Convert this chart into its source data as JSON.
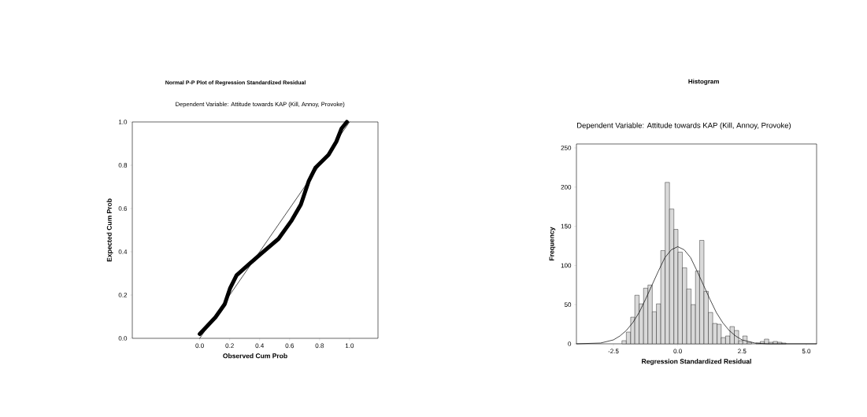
{
  "chart_data": [
    {
      "type": "line",
      "title": "Normal P-P Plot of Regression Standardized Residual",
      "subtitle": "Dependent Variable: Attitude towards KAP (Kill, Annoy, Provoke)",
      "xlabel": "Observed Cum Prob",
      "ylabel": "Expected Cum Prob",
      "xlim": [
        -0.45,
        1.19
      ],
      "ylim": [
        0,
        1
      ],
      "xticks": [
        {
          "value": 0,
          "label": "0.0"
        },
        {
          "value": 0.2,
          "label": "0.2"
        },
        {
          "value": 0.4,
          "label": "0.4"
        },
        {
          "value": 0.6,
          "label": "0.6"
        },
        {
          "value": 0.8,
          "label": "0.8"
        },
        {
          "value": 1,
          "label": "1.0"
        }
      ],
      "yticks": [
        {
          "value": 0,
          "label": "0.0"
        },
        {
          "value": 0.2,
          "label": "0.2"
        },
        {
          "value": 0.4,
          "label": "0.4"
        },
        {
          "value": 0.6,
          "label": "0.6"
        },
        {
          "value": 0.8,
          "label": "0.8"
        },
        {
          "value": 1,
          "label": "1.0"
        }
      ],
      "series": [
        {
          "color": "#000000",
          "x": [
            0,
            1
          ],
          "values": [
            0,
            1
          ]
        },
        {
          "color": "#000000",
          "x": [
            0,
            0.105,
            0.167,
            0.202,
            0.246,
            0.333,
            0.404,
            0.526,
            0.614,
            0.675,
            0.728,
            0.772,
            0.86,
            0.912,
            0.947,
            0.982
          ],
          "values": [
            0.02,
            0.097,
            0.158,
            0.23,
            0.291,
            0.345,
            0.388,
            0.46,
            0.545,
            0.618,
            0.727,
            0.788,
            0.848,
            0.909,
            0.97,
            1.0
          ]
        }
      ]
    },
    {
      "type": "histogram",
      "title": "Histogram",
      "subtitle": "Dependent Variable: Attitude towards KAP (Kill, Annoy, Provoke)",
      "xlabel": "Regression Standardized Residual",
      "ylabel": "Frequency",
      "xlim": [
        -3.94,
        5.4
      ],
      "ylim": [
        0,
        255
      ],
      "xticks": [
        {
          "value": -2.5,
          "label": "-2.5"
        },
        {
          "value": 0,
          "label": "0.0"
        },
        {
          "value": 2.5,
          "label": "2.5"
        },
        {
          "value": 5,
          "label": "5.0"
        }
      ],
      "yticks": [
        0,
        50,
        100,
        150,
        200,
        250
      ],
      "bins": [
        -2.17,
        -2.0,
        -1.83,
        -1.67,
        -1.5,
        -1.33,
        -1.16,
        -0.99,
        -0.83,
        -0.66,
        -0.49,
        -0.32,
        -0.15,
        0.01,
        0.18,
        0.35,
        0.52,
        0.69,
        0.85,
        1.02,
        1.19,
        1.36,
        1.53,
        1.69,
        1.86,
        2.03,
        2.2,
        2.37,
        2.53,
        2.7,
        2.87,
        3.04,
        3.21,
        3.37,
        3.54,
        3.71,
        3.88,
        4.05,
        4.21
      ],
      "values": [
        4,
        15,
        34,
        62,
        51,
        71,
        75,
        41,
        51,
        119,
        206,
        172,
        146,
        117,
        97,
        70,
        50,
        93,
        132,
        67,
        40,
        26,
        25,
        8,
        10,
        22,
        17,
        4,
        10,
        2,
        0,
        1,
        3,
        6,
        2,
        3,
        2,
        1
      ],
      "color": "#d9d9d9",
      "series": [
        {
          "type": "line",
          "color": "#000000",
          "x": [
            -3.94,
            -3,
            -2.5,
            -2.25,
            -2,
            -1.75,
            -1.5,
            -1.25,
            -1,
            -0.75,
            -0.5,
            -0.25,
            0,
            0.25,
            0.5,
            0.75,
            1,
            1.25,
            1.5,
            1.75,
            2,
            2.25,
            2.5,
            3,
            3.5,
            4,
            5.4
          ],
          "values": [
            0,
            1,
            5,
            10,
            17,
            27,
            40,
            57,
            75,
            93,
            110,
            120,
            124,
            120,
            110,
            93,
            75,
            57,
            40,
            27,
            17,
            10,
            5,
            1,
            0,
            0,
            0
          ]
        }
      ]
    }
  ]
}
